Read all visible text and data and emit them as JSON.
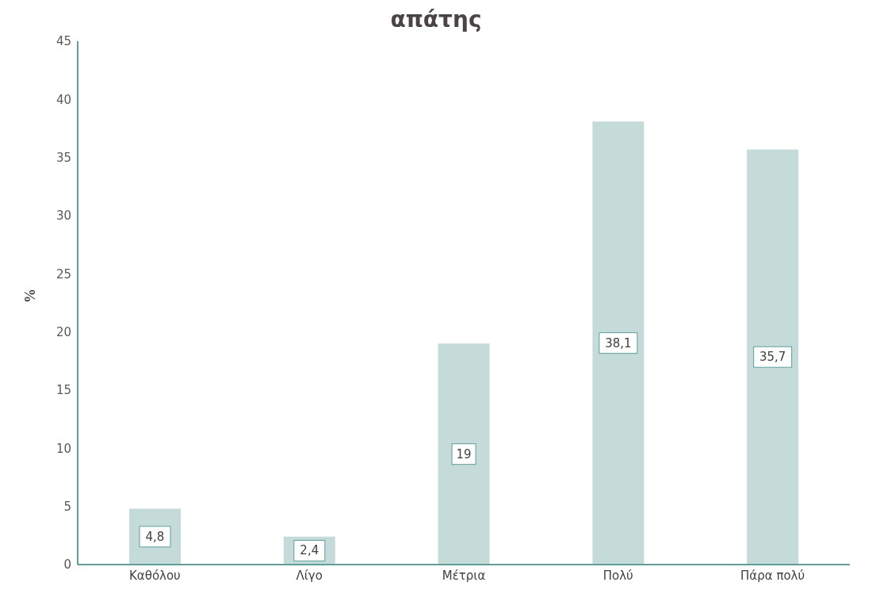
{
  "chart_data": {
    "type": "bar",
    "title": "απάτης",
    "ylabel": "%",
    "categories": [
      "Καθόλου",
      "Λίγο",
      "Μέτρια",
      "Πολύ",
      "Πάρα πολύ"
    ],
    "values": [
      4.8,
      2.4,
      19,
      38.1,
      35.7
    ],
    "value_labels": [
      "4,8",
      "2,4",
      "19",
      "38,1",
      "35,7"
    ],
    "color": "#c5dbd9",
    "ylim": [
      0,
      45
    ],
    "yticks": [
      0,
      5,
      10,
      15,
      20,
      25,
      30,
      35,
      40,
      45
    ],
    "grid": false
  }
}
